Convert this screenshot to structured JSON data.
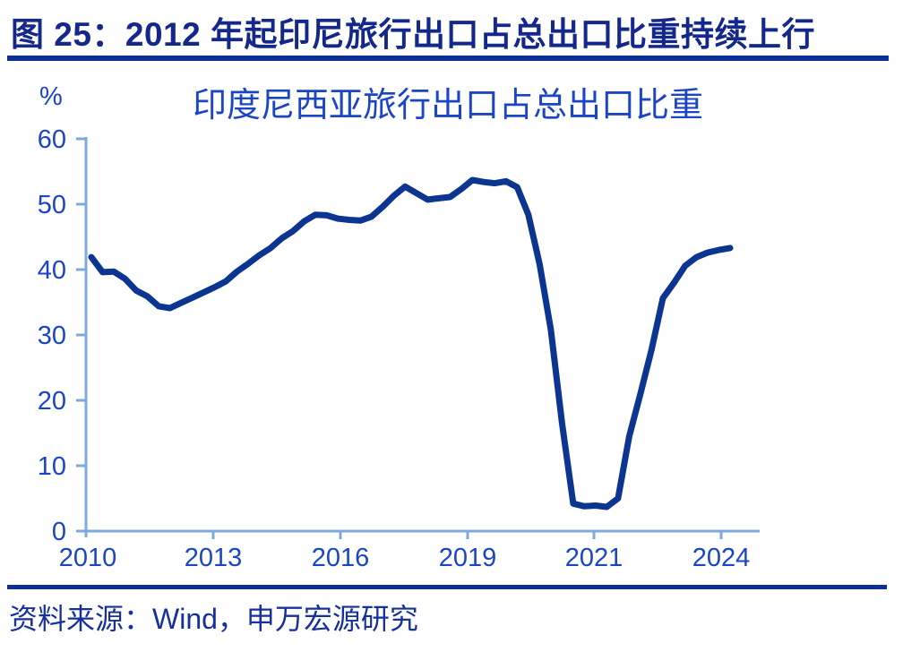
{
  "figure": {
    "header_title": "图 25：2012 年起印尼旅行出口占总出口比重持续上行",
    "source_note": "资料来源：Wind，申万宏源研究"
  },
  "chart_data": {
    "type": "line",
    "title": "印度尼西亚旅行出口占总出口比重",
    "ylabel": "%",
    "xlabel": "",
    "ylim": [
      0,
      60
    ],
    "yticks": [
      60,
      50,
      40,
      30,
      20,
      10,
      0
    ],
    "xtick_labels": [
      "2010",
      "2013",
      "2016",
      "2019",
      "2021",
      "2024"
    ],
    "x_period_start": "2010Q1",
    "x_period_end": "2024Q2",
    "x_frequency": "quarterly",
    "grid": false,
    "legend_position": "none",
    "series": [
      {
        "name": "印度尼西亚旅行出口占总出口比重",
        "values": [
          41.9,
          39.6,
          39.7,
          38.6,
          36.8,
          35.9,
          34.4,
          34.1,
          34.9,
          35.7,
          36.5,
          37.3,
          38.2,
          39.7,
          40.9,
          42.2,
          43.3,
          44.8,
          45.9,
          47.4,
          48.4,
          48.3,
          47.8,
          47.6,
          47.5,
          48.1,
          49.6,
          51.3,
          52.7,
          51.7,
          50.7,
          50.9,
          51.1,
          52.3,
          53.7,
          53.4,
          53.2,
          53.5,
          52.6,
          48.4,
          40.8,
          30.8,
          16.5,
          4.2,
          3.8,
          3.9,
          3.7,
          5.0,
          14.5,
          21.0,
          27.8,
          35.6,
          38.0,
          40.6,
          41.9,
          42.6,
          43.0,
          43.3
        ]
      }
    ],
    "colors": {
      "line": "#0B3590",
      "axis": "#7FA9DC",
      "tick_label": "#1A45C4",
      "header_text": "#14278A",
      "rule": "#0D2F96",
      "source_text": "#16309C"
    }
  }
}
